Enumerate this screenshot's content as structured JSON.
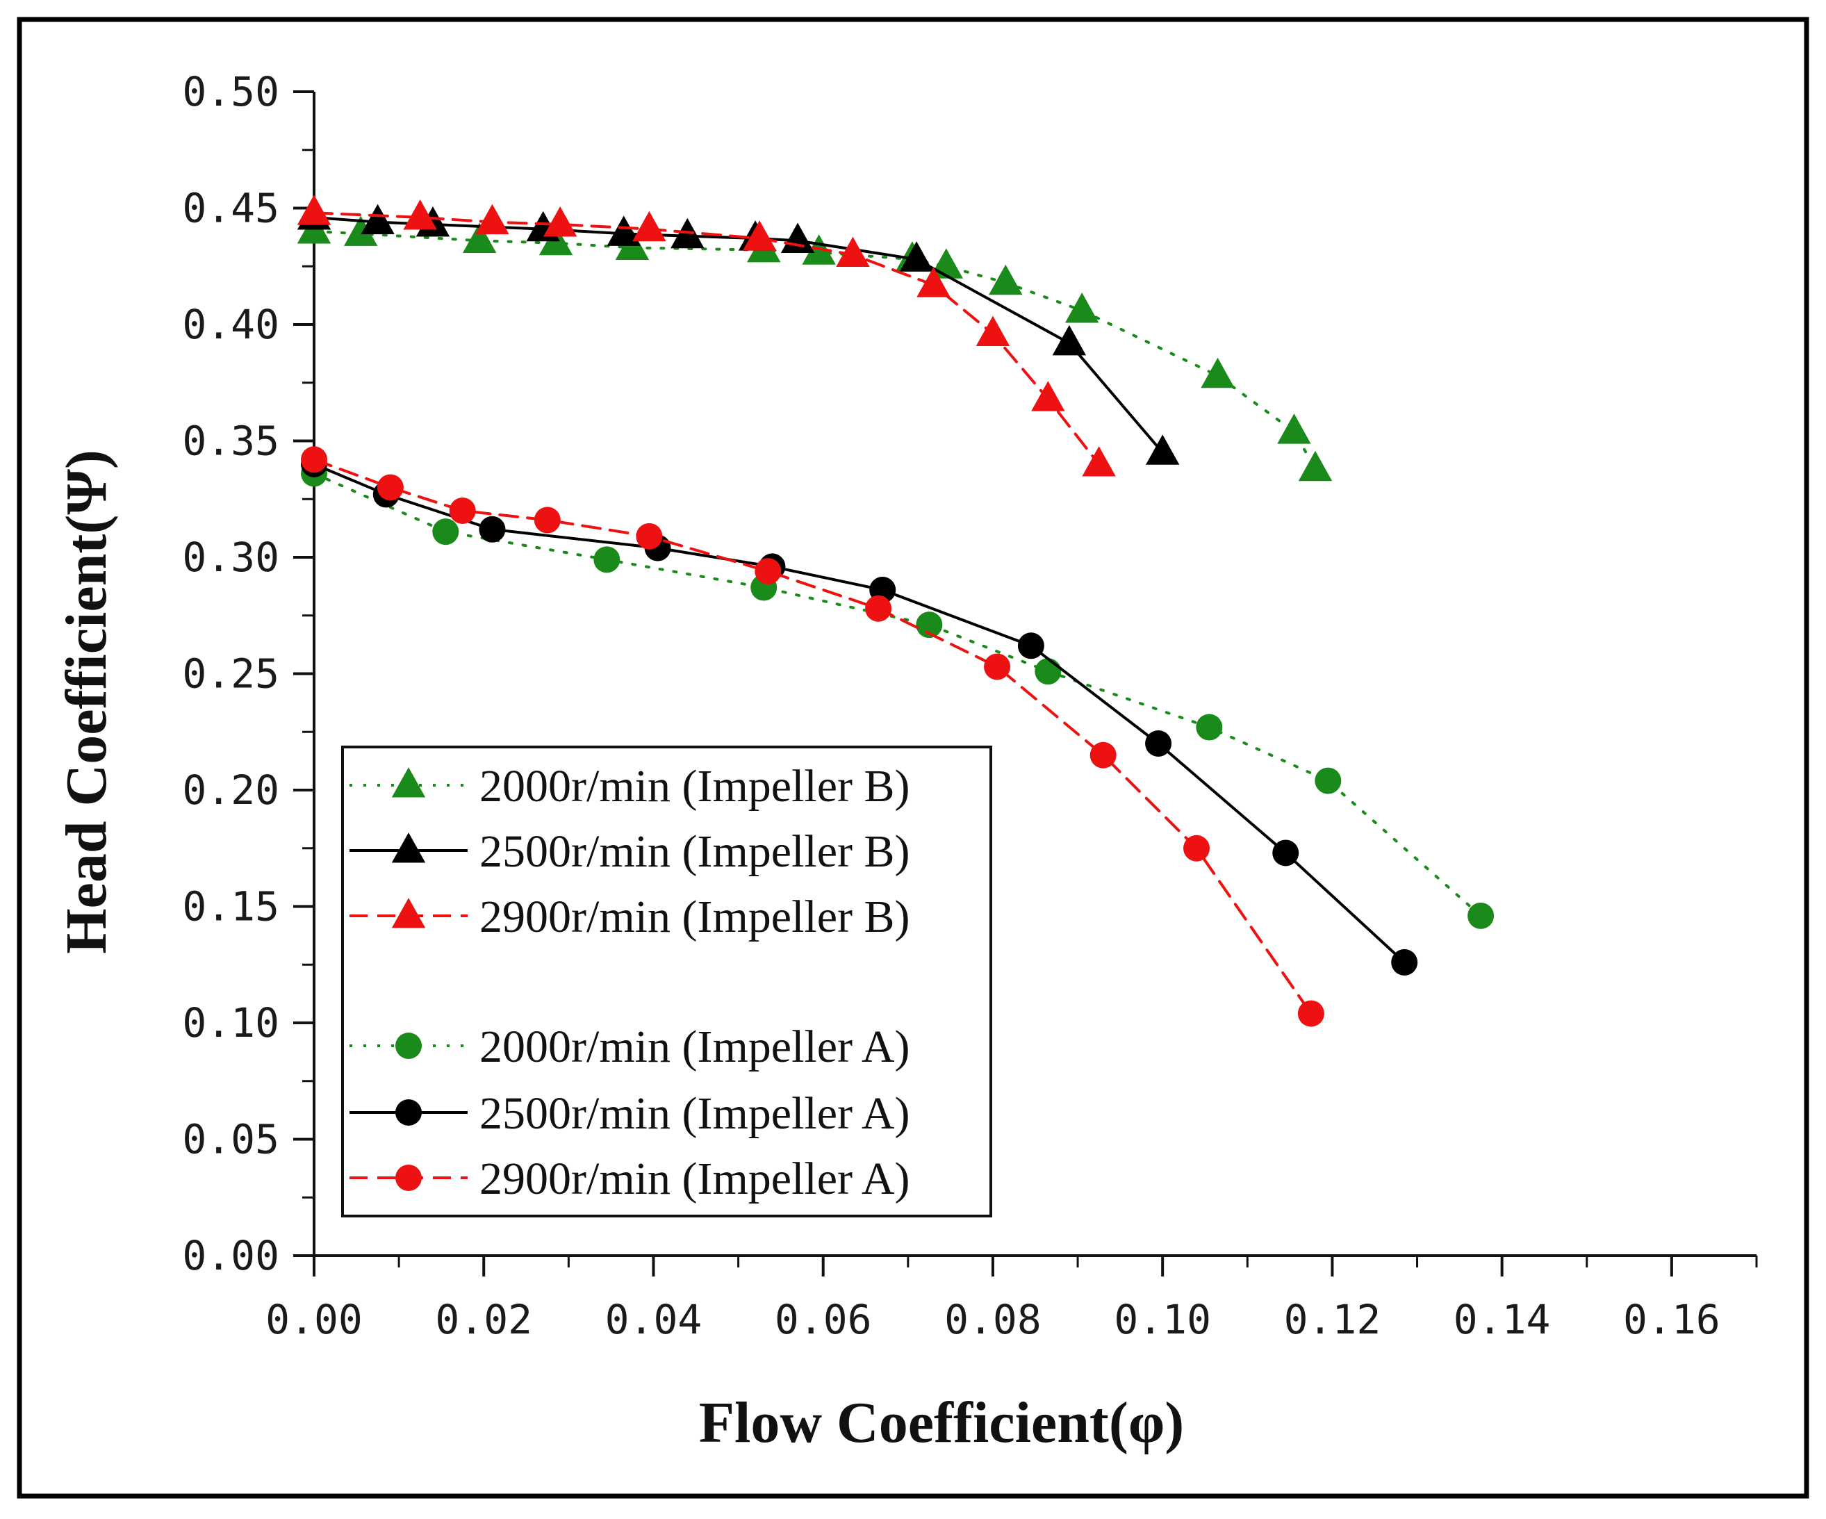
{
  "chart_data": {
    "type": "line",
    "title": "",
    "xlabel": "Flow Coefficient(φ)",
    "ylabel": "Head Coefficient(Ψ)",
    "xlim": [
      0,
      0.17
    ],
    "ylim": [
      0,
      0.5
    ],
    "x_ticks": [
      "0.00",
      "0.02",
      "0.04",
      "0.06",
      "0.08",
      "0.10",
      "0.12",
      "0.14",
      "0.16"
    ],
    "y_ticks": [
      "0.00",
      "0.05",
      "0.10",
      "0.15",
      "0.20",
      "0.25",
      "0.30",
      "0.35",
      "0.40",
      "0.45",
      "0.50"
    ],
    "x_tick_values": [
      0,
      0.02,
      0.04,
      0.06,
      0.08,
      0.1,
      0.12,
      0.14,
      0.16
    ],
    "y_tick_values": [
      0,
      0.05,
      0.1,
      0.15,
      0.2,
      0.25,
      0.3,
      0.35,
      0.4,
      0.45,
      0.5
    ],
    "grid": false,
    "legend_position": "bottom-left",
    "series": [
      {
        "name": "2000r/min (Impeller B)",
        "marker": "triangle",
        "line_style": "dotted",
        "color": "#1a8a1a",
        "x": [
          0.0,
          0.0055,
          0.0195,
          0.0285,
          0.0375,
          0.053,
          0.0595,
          0.0705,
          0.0745,
          0.0815,
          0.0905,
          0.1065,
          0.1155,
          0.118
        ],
        "y": [
          0.44,
          0.439,
          0.436,
          0.435,
          0.433,
          0.432,
          0.431,
          0.428,
          0.425,
          0.418,
          0.406,
          0.378,
          0.354,
          0.338
        ]
      },
      {
        "name": "2500r/min (Impeller B)",
        "marker": "triangle",
        "line_style": "solid",
        "color": "#000000",
        "x": [
          0.0,
          0.0075,
          0.014,
          0.027,
          0.0365,
          0.044,
          0.052,
          0.057,
          0.071,
          0.089,
          0.1
        ],
        "y": [
          0.446,
          0.444,
          0.443,
          0.441,
          0.439,
          0.438,
          0.437,
          0.436,
          0.428,
          0.392,
          0.345
        ]
      },
      {
        "name": "2900r/min (Impeller B)",
        "marker": "triangle",
        "line_style": "dashed",
        "color": "#ee1111",
        "x": [
          0.0,
          0.0125,
          0.021,
          0.029,
          0.0395,
          0.0525,
          0.0635,
          0.073,
          0.08,
          0.0865,
          0.0925
        ],
        "y": [
          0.448,
          0.446,
          0.444,
          0.443,
          0.441,
          0.437,
          0.43,
          0.417,
          0.396,
          0.368,
          0.34
        ]
      },
      {
        "name": "2000r/min (Impeller A)",
        "marker": "circle",
        "line_style": "dotted",
        "color": "#1a8a1a",
        "x": [
          0.0,
          0.0155,
          0.0345,
          0.053,
          0.0725,
          0.0865,
          0.1055,
          0.1195,
          0.1375
        ],
        "y": [
          0.336,
          0.311,
          0.299,
          0.287,
          0.271,
          0.251,
          0.227,
          0.204,
          0.146
        ]
      },
      {
        "name": "2500r/min (Impeller A)",
        "marker": "circle",
        "line_style": "solid",
        "color": "#000000",
        "x": [
          0.0,
          0.0085,
          0.021,
          0.0405,
          0.054,
          0.067,
          0.0845,
          0.0995,
          0.1145,
          0.1285
        ],
        "y": [
          0.34,
          0.327,
          0.312,
          0.304,
          0.296,
          0.286,
          0.262,
          0.22,
          0.173,
          0.126
        ]
      },
      {
        "name": "2900r/min (Impeller A)",
        "marker": "circle",
        "line_style": "dashed",
        "color": "#ee1111",
        "x": [
          0.0,
          0.009,
          0.0175,
          0.0275,
          0.0395,
          0.0535,
          0.0665,
          0.0805,
          0.093,
          0.104,
          0.1175
        ],
        "y": [
          0.342,
          0.33,
          0.32,
          0.316,
          0.309,
          0.294,
          0.278,
          0.253,
          0.215,
          0.175,
          0.104
        ]
      }
    ]
  }
}
